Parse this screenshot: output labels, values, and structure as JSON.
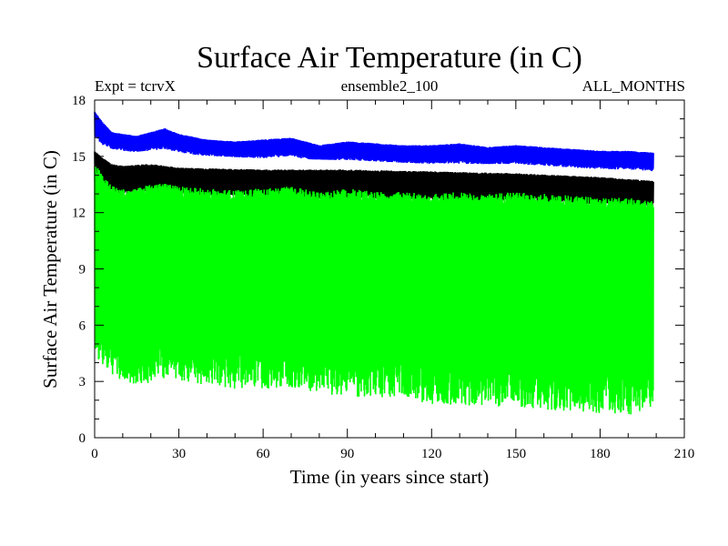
{
  "chart_data": {
    "type": "line",
    "title": "Surface Air Temperature (in C)",
    "subtitle_left": "Expt = tcrvX",
    "subtitle_center": "ensemble2_100",
    "subtitle_right": "ALL_MONTHS",
    "xlabel": "Time (in years since start)",
    "ylabel": "Surface Air Temperature (in C)",
    "xlim": [
      0,
      210
    ],
    "ylim": [
      0,
      18
    ],
    "xticks": [
      0,
      30,
      60,
      90,
      120,
      150,
      180,
      210
    ],
    "yticks": [
      0,
      3,
      6,
      9,
      12,
      15,
      18
    ],
    "grid": false,
    "legend": "none",
    "series": [
      {
        "color": "#0000ff",
        "x": [
          0,
          3,
          6,
          10,
          15,
          20,
          25,
          30,
          40,
          50,
          60,
          70,
          80,
          90,
          100,
          110,
          120,
          130,
          140,
          150,
          160,
          170,
          180,
          190,
          199
        ],
        "high": [
          17.4,
          16.8,
          16.3,
          16.2,
          16.1,
          16.3,
          16.5,
          16.2,
          15.9,
          15.8,
          15.9,
          16.0,
          15.6,
          15.8,
          15.7,
          15.6,
          15.6,
          15.7,
          15.5,
          15.6,
          15.5,
          15.4,
          15.3,
          15.3,
          15.2
        ],
        "low": [
          16.0,
          15.6,
          15.4,
          15.3,
          15.2,
          15.3,
          15.4,
          15.2,
          15.0,
          14.9,
          14.9,
          15.0,
          14.7,
          14.8,
          14.7,
          14.6,
          14.6,
          14.6,
          14.5,
          14.6,
          14.5,
          14.4,
          14.3,
          14.3,
          14.2
        ]
      },
      {
        "color": "#ffffff",
        "x": [
          0,
          10,
          20,
          30,
          60,
          90,
          120,
          150,
          180,
          199
        ],
        "high": [
          15.6,
          15.2,
          15.3,
          15.1,
          14.9,
          14.8,
          14.6,
          14.6,
          14.3,
          14.2
        ],
        "low": [
          15.2,
          14.8,
          14.9,
          14.7,
          14.5,
          14.4,
          14.2,
          14.2,
          13.9,
          13.8
        ]
      },
      {
        "color": "#000000",
        "x": [
          0,
          3,
          6,
          10,
          20,
          30,
          60,
          90,
          120,
          150,
          180,
          199
        ],
        "high": [
          15.3,
          14.9,
          14.6,
          14.5,
          14.6,
          14.4,
          14.3,
          14.3,
          14.2,
          14.1,
          13.9,
          13.7
        ],
        "low": [
          13.6,
          13.3,
          13.1,
          13.0,
          13.1,
          12.9,
          12.8,
          12.7,
          12.6,
          12.6,
          12.4,
          12.3
        ]
      },
      {
        "color": "#00ff00",
        "x": [
          0,
          3,
          6,
          10,
          15,
          20,
          25,
          30,
          40,
          50,
          60,
          70,
          80,
          90,
          100,
          110,
          120,
          130,
          140,
          150,
          160,
          170,
          180,
          190,
          199
        ],
        "high": [
          14.6,
          14.0,
          13.5,
          13.3,
          13.3,
          13.5,
          13.6,
          13.4,
          13.3,
          13.2,
          13.3,
          13.4,
          13.1,
          13.3,
          13.1,
          13.1,
          13.0,
          13.1,
          13.0,
          13.1,
          13.0,
          12.9,
          12.8,
          12.8,
          12.6
        ],
        "low": [
          4.5,
          3.8,
          3.3,
          3.0,
          2.8,
          2.9,
          3.1,
          3.0,
          2.8,
          2.6,
          2.6,
          2.7,
          2.3,
          2.2,
          2.1,
          2.0,
          1.8,
          1.7,
          1.7,
          1.6,
          1.5,
          1.4,
          1.3,
          1.2,
          1.5
        ]
      }
    ]
  }
}
